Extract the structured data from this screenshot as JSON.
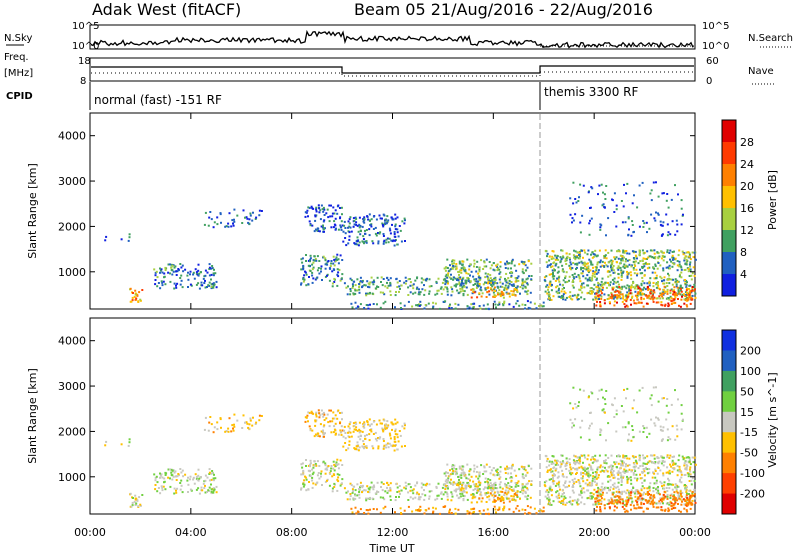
{
  "header": {
    "site": "Adak West (fitACF)",
    "beam_date": "Beam 05  21/Aug/2016 - 22/Aug/2016"
  },
  "noise_panel": {
    "left_label": "N.Sky",
    "right_label": "N.Search",
    "left_ticks": [
      "10^5",
      "10^0"
    ],
    "right_ticks": [
      "10^5",
      "10^0"
    ]
  },
  "freq_panel": {
    "left_label": "Freq.",
    "left_unit": "[MHz]",
    "right_label": "Nave",
    "left_ticks": [
      "18",
      "8"
    ],
    "right_ticks": [
      "60",
      "0"
    ]
  },
  "cpid": {
    "label": "CPID",
    "modes": [
      "normal (fast) -151 RF",
      "themis 3300 RF"
    ]
  },
  "panels": {
    "power": {
      "ylabel": "Slant Range [km]"
    },
    "velocity": {
      "ylabel": "Slant Range [km]"
    }
  },
  "colorbars": {
    "power": {
      "label": "Power [dB]",
      "ticks": [
        "28",
        "24",
        "20",
        "16",
        "12",
        "8",
        "4"
      ],
      "colors": [
        "#e00000",
        "#ff3a00",
        "#ff8000",
        "#ffc000",
        "#a8d040",
        "#40a060",
        "#2060c0",
        "#1020e0"
      ]
    },
    "velocity": {
      "label": "Velocity [m s^-1]",
      "ticks": [
        "200",
        "100",
        "50",
        "15",
        "-15",
        "-50",
        "-100",
        "-200"
      ],
      "colors": [
        "#1030e0",
        "#2060c0",
        "#40a060",
        "#70d040",
        "#c8c8c0",
        "#ffc000",
        "#ff8000",
        "#ff4000",
        "#e00000"
      ]
    }
  },
  "chart_data": {
    "type": "heatmap",
    "xlabel": "Time UT",
    "ylabel": "Slant Range [km]",
    "x_ticks": [
      "00:00",
      "04:00",
      "08:00",
      "12:00",
      "16:00",
      "20:00",
      "00:00"
    ],
    "x_range_hours": [
      0,
      24
    ],
    "y_ticks": [
      1000,
      2000,
      3000,
      4000
    ],
    "y_range_km": [
      180,
      4500
    ],
    "mode_change_hour": 18,
    "cpid_change_hour": 18,
    "frequency_mhz": [
      {
        "start_hour": 0,
        "end_hour": 10,
        "value": 13.5
      },
      {
        "start_hour": 10,
        "end_hour": 18,
        "value": 11
      },
      {
        "start_hour": 18,
        "end_hour": 24,
        "value": 14
      }
    ],
    "echo_regions": [
      {
        "t0": 0.2,
        "t1": 1.6,
        "r0": 1700,
        "r1": 1850,
        "density": 0.15,
        "power": 8,
        "velocity": 0
      },
      {
        "t0": 1.5,
        "t1": 2.1,
        "r0": 350,
        "r1": 650,
        "density": 0.7,
        "power": 22,
        "velocity": -10
      },
      {
        "t0": 2.5,
        "t1": 5.0,
        "r0": 650,
        "r1": 1200,
        "density": 0.5,
        "power": 9,
        "velocity": 5
      },
      {
        "t0": 4.5,
        "t1": 6.8,
        "r0": 2000,
        "r1": 2400,
        "density": 0.25,
        "power": 7,
        "velocity": -30
      },
      {
        "t0": 8.5,
        "t1": 10.0,
        "r0": 1900,
        "r1": 2500,
        "density": 0.5,
        "power": 7,
        "velocity": -25
      },
      {
        "t0": 8.3,
        "t1": 10.0,
        "r0": 700,
        "r1": 1400,
        "density": 0.5,
        "power": 10,
        "velocity": 0
      },
      {
        "t0": 10.0,
        "t1": 12.5,
        "r0": 1600,
        "r1": 2300,
        "density": 0.5,
        "power": 8,
        "velocity": -20
      },
      {
        "t0": 10.0,
        "t1": 17.5,
        "r0": 500,
        "r1": 900,
        "density": 0.5,
        "power": 12,
        "velocity": 5
      },
      {
        "t0": 14.0,
        "t1": 17.5,
        "r0": 650,
        "r1": 1300,
        "density": 0.55,
        "power": 13,
        "velocity": 0
      },
      {
        "t0": 15.0,
        "t1": 17.0,
        "r0": 450,
        "r1": 700,
        "density": 0.5,
        "power": 22,
        "velocity": -40
      },
      {
        "t0": 10.0,
        "t1": 18.0,
        "r0": 200,
        "r1": 380,
        "density": 0.35,
        "power": 10,
        "velocity": -60
      },
      {
        "t0": 18.0,
        "t1": 24.0,
        "r0": 400,
        "r1": 1500,
        "density": 0.7,
        "power": 14,
        "velocity": 0
      },
      {
        "t0": 20.0,
        "t1": 24.0,
        "r0": 250,
        "r1": 700,
        "density": 0.55,
        "power": 26,
        "velocity": -80
      },
      {
        "t0": 19.0,
        "t1": 23.5,
        "r0": 1800,
        "r1": 3000,
        "density": 0.12,
        "power": 7,
        "velocity": 10
      }
    ]
  }
}
